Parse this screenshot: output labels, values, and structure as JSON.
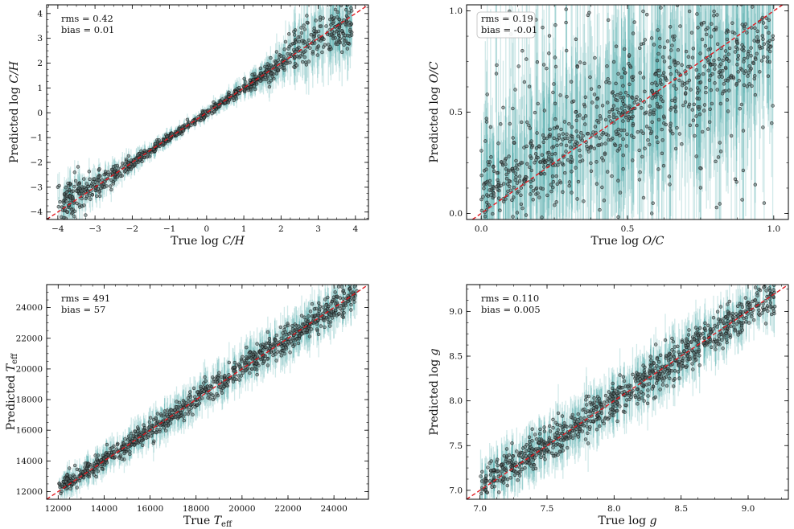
{
  "chart_data": [
    {
      "id": "ch",
      "type": "scatter",
      "xlabel": "True log C/H",
      "ylabel": "Predicted log C/H",
      "xlim": [
        -4.3,
        4.35
      ],
      "ylim": [
        -4.3,
        4.35
      ],
      "xticks": [
        -4,
        -3,
        -2,
        -1,
        0,
        1,
        2,
        3,
        4
      ],
      "yticks": [
        -4,
        -3,
        -2,
        -1,
        0,
        1,
        2,
        3,
        4
      ],
      "xtick_labels": [
        "−4",
        "−3",
        "−2",
        "−1",
        "0",
        "1",
        "2",
        "3",
        "4"
      ],
      "ytick_labels": [
        "−4",
        "−3",
        "−2",
        "−1",
        "0",
        "1",
        "2",
        "3",
        "4"
      ],
      "rms_label": "rms = 0.42",
      "bias_label": "bias = 0.01",
      "stats_box": false,
      "x": [
        -4.0,
        -3.6,
        -3.2,
        -2.8,
        -2.4,
        -2.0,
        -1.6,
        -1.2,
        -0.8,
        -0.4,
        0.0,
        0.4,
        0.8,
        1.2,
        1.6,
        2.0,
        2.4,
        2.8,
        3.2,
        3.6,
        3.9
      ],
      "y": [
        -3.7,
        -3.5,
        -3.1,
        -2.8,
        -2.4,
        -2.0,
        -1.6,
        -1.2,
        -0.8,
        -0.4,
        0.0,
        0.4,
        0.8,
        1.2,
        1.6,
        2.0,
        2.5,
        2.9,
        3.1,
        3.3,
        3.5
      ],
      "scatter_noise": [
        0.35,
        0.35,
        0.3,
        0.25,
        0.2,
        0.15,
        0.1,
        0.1,
        0.08,
        0.08,
        0.08,
        0.08,
        0.1,
        0.12,
        0.2,
        0.3,
        0.4,
        0.5,
        0.55,
        0.55,
        0.55
      ],
      "error_half_width": [
        0.5,
        0.5,
        0.45,
        0.4,
        0.35,
        0.3,
        0.25,
        0.25,
        0.2,
        0.2,
        0.2,
        0.25,
        0.3,
        0.35,
        0.45,
        0.6,
        0.8,
        1.0,
        1.1,
        1.1,
        1.1
      ],
      "n_points": 900,
      "seed": 11,
      "reference_line": "y = x"
    },
    {
      "id": "oc",
      "type": "scatter",
      "xlabel": "True log O/C",
      "ylabel": "Predicted log O/C",
      "xlim": [
        -0.05,
        1.05
      ],
      "ylim": [
        -0.03,
        1.03
      ],
      "xticks": [
        0.0,
        0.5,
        1.0
      ],
      "yticks": [
        0.0,
        0.5,
        1.0
      ],
      "xtick_labels": [
        "0.0",
        "0.5",
        "1.0"
      ],
      "ytick_labels": [
        "0.0",
        "0.5",
        "1.0"
      ],
      "rms_label": "rms = 0.19",
      "bias_label": "bias = -0.01",
      "stats_box": true,
      "x": [
        0.0,
        0.1,
        0.2,
        0.3,
        0.4,
        0.5,
        0.6,
        0.7,
        0.8,
        0.9,
        1.0
      ],
      "y": [
        0.12,
        0.17,
        0.24,
        0.32,
        0.4,
        0.48,
        0.57,
        0.65,
        0.73,
        0.8,
        0.87
      ],
      "scatter_noise": [
        0.1,
        0.1,
        0.11,
        0.12,
        0.13,
        0.14,
        0.14,
        0.14,
        0.14,
        0.13,
        0.12
      ],
      "error_half_width": [
        0.25,
        0.25,
        0.28,
        0.3,
        0.32,
        0.35,
        0.35,
        0.35,
        0.35,
        0.32,
        0.3
      ],
      "outlier_fraction": 0.18,
      "n_points": 900,
      "seed": 23,
      "reference_line": "y = x"
    },
    {
      "id": "teff",
      "type": "scatter",
      "xlabel": "True T_eff",
      "ylabel": "Predicted T_eff",
      "xlim": [
        11500,
        25500
      ],
      "ylim": [
        11500,
        25500
      ],
      "xticks": [
        12000,
        14000,
        16000,
        18000,
        20000,
        22000,
        24000
      ],
      "yticks": [
        12000,
        14000,
        16000,
        18000,
        20000,
        22000,
        24000
      ],
      "xtick_labels": [
        "12000",
        "14000",
        "16000",
        "18000",
        "20000",
        "22000",
        "24000"
      ],
      "ytick_labels": [
        "12000",
        "14000",
        "16000",
        "18000",
        "20000",
        "22000",
        "24000"
      ],
      "rms_label": "rms = 491",
      "bias_label": "bias = 57",
      "stats_box": false,
      "x": [
        12000,
        14000,
        16000,
        18000,
        20000,
        22000,
        24000,
        25000
      ],
      "y": [
        12200,
        14100,
        16000,
        18050,
        20100,
        22050,
        24000,
        24900
      ],
      "scatter_noise": [
        250,
        300,
        350,
        400,
        420,
        450,
        480,
        500
      ],
      "error_half_width": [
        600,
        700,
        800,
        900,
        1000,
        1050,
        1100,
        1100
      ],
      "n_points": 900,
      "seed": 37,
      "reference_line": "y = x"
    },
    {
      "id": "logg",
      "type": "scatter",
      "xlabel": "True log g",
      "ylabel": "Predicted log g",
      "xlim": [
        6.9,
        9.3
      ],
      "ylim": [
        6.9,
        9.3
      ],
      "xticks": [
        7.0,
        7.5,
        8.0,
        8.5,
        9.0
      ],
      "yticks": [
        7.0,
        7.5,
        8.0,
        8.5,
        9.0
      ],
      "xtick_labels": [
        "7.0",
        "7.5",
        "8.0",
        "8.5",
        "9.0"
      ],
      "ytick_labels": [
        "7.0",
        "7.5",
        "8.0",
        "8.5",
        "9.0"
      ],
      "rms_label": "rms = 0.110",
      "bias_label": "bias = 0.005",
      "stats_box": false,
      "x": [
        7.0,
        7.5,
        8.0,
        8.5,
        9.0,
        9.2
      ],
      "y": [
        7.05,
        7.52,
        8.0,
        8.5,
        9.0,
        9.15
      ],
      "scatter_noise": [
        0.09,
        0.1,
        0.11,
        0.11,
        0.1,
        0.1
      ],
      "error_half_width": [
        0.2,
        0.22,
        0.22,
        0.22,
        0.2,
        0.18
      ],
      "n_points": 900,
      "seed": 53,
      "reference_line": "y = x"
    }
  ],
  "colors": {
    "errorbar": "#2f9c9c",
    "point_fill": "#5a6a6a",
    "point_edge": "#111111",
    "reference_line": "#e0191f",
    "axis": "#000000",
    "stats_box_edge": "#bbbbbb"
  }
}
